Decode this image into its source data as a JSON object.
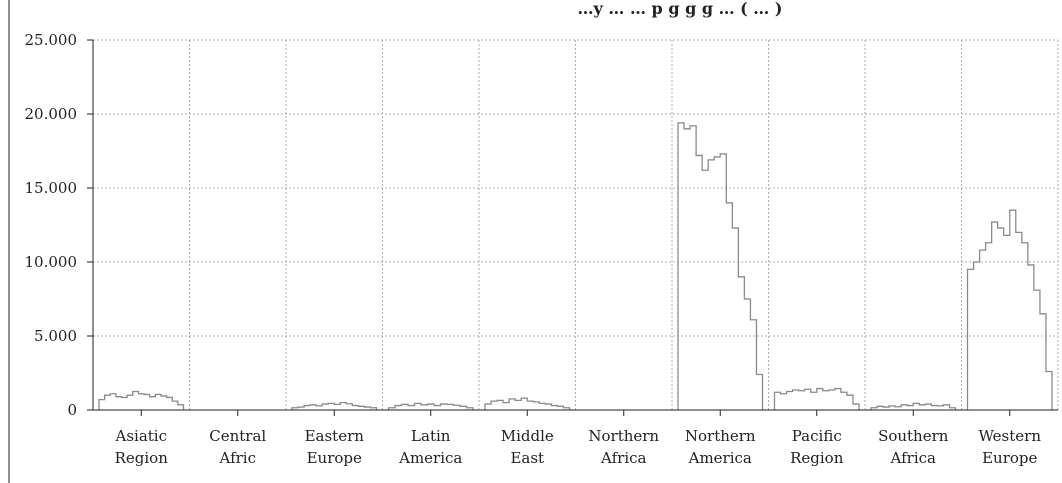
{
  "chart_data": {
    "type": "area",
    "title": "…y … … p g g g … ( … )",
    "xlabel": "",
    "ylabel": "",
    "ylim": [
      0,
      25000
    ],
    "yticks": [
      "0",
      "5.000",
      "10.000",
      "15.000",
      "20.000",
      "25.000"
    ],
    "ytick_values": [
      0,
      5000,
      10000,
      15000,
      20000,
      25000
    ],
    "grid": true,
    "colors": {
      "line": "#8a8a8a",
      "grid": "#9a9a9a",
      "axis": "#222222"
    },
    "categories": [
      {
        "line1": "Asiatic",
        "line2": "Region",
        "values": [
          700,
          1000,
          1100,
          900,
          850,
          1000,
          1250,
          1100,
          1050,
          900,
          1050,
          950,
          850,
          600,
          350
        ]
      },
      {
        "line1": "Central",
        "line2": "Afric",
        "values": [
          0
        ]
      },
      {
        "line1": "Eastern",
        "line2": "Europe",
        "values": [
          150,
          200,
          300,
          350,
          280,
          400,
          450,
          380,
          500,
          420,
          300,
          250,
          200,
          150
        ]
      },
      {
        "line1": "Latin",
        "line2": "America",
        "values": [
          150,
          300,
          380,
          300,
          450,
          350,
          400,
          300,
          400,
          380,
          320,
          250,
          150
        ]
      },
      {
        "line1": "Middle",
        "line2": "East",
        "values": [
          400,
          600,
          650,
          500,
          750,
          650,
          800,
          600,
          550,
          450,
          400,
          300,
          250,
          150
        ]
      },
      {
        "line1": "Northern",
        "line2": "Africa",
        "values": [
          0
        ]
      },
      {
        "line1": "Northern",
        "line2": "America",
        "values": [
          19400,
          19000,
          19200,
          17200,
          16200,
          16900,
          17100,
          17300,
          14000,
          12300,
          9000,
          7500,
          6100,
          2400
        ]
      },
      {
        "line1": "Pacific",
        "line2": "Region",
        "values": [
          1200,
          1100,
          1250,
          1350,
          1300,
          1400,
          1200,
          1450,
          1300,
          1350,
          1450,
          1200,
          1000,
          400
        ]
      },
      {
        "line1": "Southern",
        "line2": "Africa",
        "values": [
          150,
          250,
          200,
          280,
          220,
          350,
          300,
          450,
          350,
          400,
          300,
          280,
          350,
          150
        ]
      },
      {
        "line1": "Western",
        "line2": "Europe",
        "values": [
          9500,
          10000,
          10800,
          11300,
          12700,
          12300,
          11800,
          13500,
          12000,
          11300,
          9800,
          8100,
          6500,
          2600
        ]
      }
    ]
  }
}
